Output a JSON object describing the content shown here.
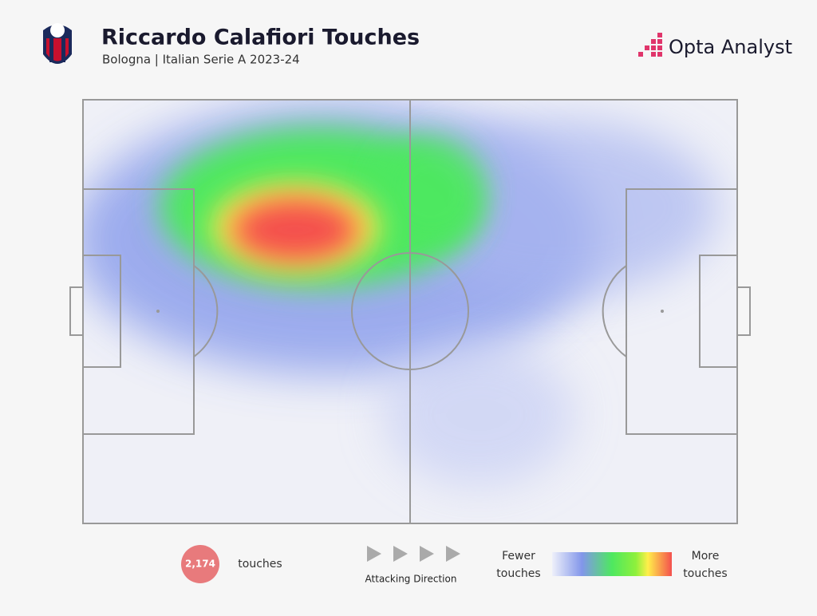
{
  "header": {
    "title": "Riccardo Calafiori Touches",
    "subtitle": "Bologna | Italian Serie A 2023-24",
    "brand": "Opta Analyst"
  },
  "footer": {
    "touches_count": "2,174",
    "touches_label": "touches",
    "direction_label": "Attacking Direction",
    "legend": {
      "low_line1": "Fewer",
      "low_line2": "touches",
      "high_line1": "More",
      "high_line2": "touches"
    }
  }
}
